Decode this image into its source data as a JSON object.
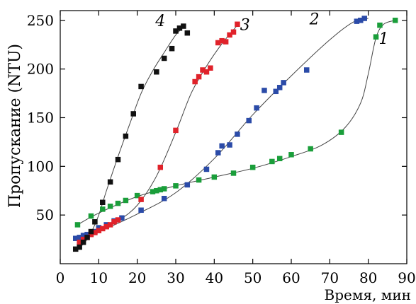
{
  "chart_data": {
    "type": "scatter",
    "title": "",
    "xlabel": "Время, мин",
    "ylabel": "Пропускание (NTU)",
    "xlim": [
      0,
      90
    ],
    "ylim": [
      0,
      260
    ],
    "xticks": [
      0,
      10,
      20,
      30,
      40,
      50,
      60,
      70,
      80,
      90
    ],
    "yticks": [
      50,
      100,
      150,
      200,
      250
    ],
    "grid": false,
    "legend": "none",
    "series": [
      {
        "name": "1",
        "color": "#1a9e3a",
        "points": [
          [
            4.5,
            40
          ],
          [
            8,
            49
          ],
          [
            11,
            56
          ],
          [
            13,
            59
          ],
          [
            15,
            62
          ],
          [
            17,
            65
          ],
          [
            20,
            70
          ],
          [
            24,
            74
          ],
          [
            25,
            75
          ],
          [
            26,
            76
          ],
          [
            27,
            77
          ],
          [
            30,
            80
          ],
          [
            36,
            86
          ],
          [
            40,
            89
          ],
          [
            45,
            93
          ],
          [
            50,
            99
          ],
          [
            55,
            105
          ],
          [
            57,
            108
          ],
          [
            60,
            112
          ],
          [
            65,
            118
          ],
          [
            73,
            135
          ],
          [
            82,
            233
          ],
          [
            83,
            245
          ],
          [
            87,
            250
          ]
        ],
        "curve": [
          [
            4.5,
            40
          ],
          [
            10,
            52
          ],
          [
            20,
            69
          ],
          [
            30,
            80
          ],
          [
            40,
            89
          ],
          [
            50,
            98
          ],
          [
            60,
            110
          ],
          [
            68,
            122
          ],
          [
            74,
            140
          ],
          [
            78,
            165
          ],
          [
            80,
            195
          ],
          [
            82,
            232
          ],
          [
            84,
            246
          ],
          [
            87,
            250
          ]
        ]
      },
      {
        "name": "2",
        "color": "#2b4ba8",
        "points": [
          [
            4,
            26
          ],
          [
            5,
            27
          ],
          [
            6,
            29
          ],
          [
            7,
            30
          ],
          [
            9,
            33
          ],
          [
            10,
            37
          ],
          [
            12,
            40
          ],
          [
            14,
            44
          ],
          [
            16,
            47
          ],
          [
            21,
            55
          ],
          [
            27,
            67
          ],
          [
            33,
            81
          ],
          [
            38,
            97
          ],
          [
            41,
            114
          ],
          [
            42,
            121
          ],
          [
            44,
            122
          ],
          [
            46,
            133
          ],
          [
            49,
            147
          ],
          [
            51,
            160
          ],
          [
            53,
            178
          ],
          [
            56,
            177
          ],
          [
            57,
            181
          ],
          [
            58,
            186
          ],
          [
            64,
            199
          ],
          [
            77,
            249
          ],
          [
            78,
            250
          ],
          [
            79,
            252
          ]
        ],
        "curve": [
          [
            4,
            25
          ],
          [
            10,
            33
          ],
          [
            20,
            51
          ],
          [
            30,
            73
          ],
          [
            40,
            108
          ],
          [
            50,
            153
          ],
          [
            60,
            193
          ],
          [
            70,
            230
          ],
          [
            76,
            248
          ],
          [
            80,
            252
          ]
        ]
      },
      {
        "name": "3",
        "color": "#e0222a",
        "points": [
          [
            5,
            22
          ],
          [
            6,
            25
          ],
          [
            7,
            27
          ],
          [
            8,
            30
          ],
          [
            9,
            32
          ],
          [
            10,
            34
          ],
          [
            11,
            36
          ],
          [
            12,
            38
          ],
          [
            13,
            40
          ],
          [
            14,
            43
          ],
          [
            15,
            45
          ],
          [
            21,
            66
          ],
          [
            26,
            99
          ],
          [
            30,
            137
          ],
          [
            35,
            187
          ],
          [
            36,
            192
          ],
          [
            37,
            199
          ],
          [
            38,
            197
          ],
          [
            39,
            201
          ],
          [
            41,
            227
          ],
          [
            42,
            229
          ],
          [
            43,
            228
          ],
          [
            44,
            235
          ],
          [
            45,
            238
          ],
          [
            46,
            246
          ]
        ],
        "curve": [
          [
            5,
            22
          ],
          [
            10,
            33
          ],
          [
            15,
            44
          ],
          [
            20,
            60
          ],
          [
            25,
            90
          ],
          [
            30,
            135
          ],
          [
            34,
            175
          ],
          [
            38,
            203
          ],
          [
            42,
            226
          ],
          [
            46,
            245
          ]
        ]
      },
      {
        "name": "4",
        "color": "#111111",
        "points": [
          [
            4,
            15
          ],
          [
            5,
            17
          ],
          [
            6,
            22
          ],
          [
            7,
            27
          ],
          [
            8,
            33
          ],
          [
            9,
            43
          ],
          [
            11,
            63
          ],
          [
            13,
            84
          ],
          [
            15,
            107
          ],
          [
            17,
            131
          ],
          [
            19,
            154
          ],
          [
            21,
            182
          ],
          [
            25,
            197
          ],
          [
            27,
            211
          ],
          [
            29,
            221
          ],
          [
            30,
            239
          ],
          [
            31,
            242
          ],
          [
            32,
            244
          ],
          [
            33,
            237
          ]
        ],
        "curve": [
          [
            4,
            15
          ],
          [
            6,
            20
          ],
          [
            8,
            32
          ],
          [
            10,
            50
          ],
          [
            12,
            75
          ],
          [
            15,
            110
          ],
          [
            18,
            143
          ],
          [
            21,
            175
          ],
          [
            24,
            198
          ],
          [
            27,
            217
          ],
          [
            30,
            235
          ],
          [
            32,
            243
          ]
        ]
      }
    ],
    "annotations": [
      {
        "text": "4",
        "series": "4",
        "x": 26,
        "y": 244
      },
      {
        "text": "3",
        "series": "3",
        "x": 48,
        "y": 240
      },
      {
        "text": "2",
        "series": "2",
        "x": 66,
        "y": 246
      },
      {
        "text": "1",
        "series": "1",
        "x": 84,
        "y": 226
      }
    ]
  }
}
